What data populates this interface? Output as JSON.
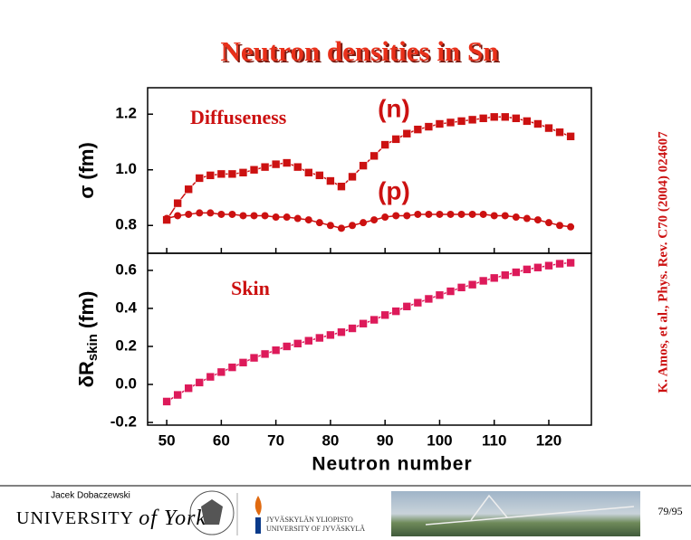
{
  "chart_data": [
    {
      "type": "line",
      "title": "Neutron densities in Sn",
      "y_label": [
        "σ",
        "(fm)"
      ],
      "annotations": [
        "Diffuseness",
        "(n)",
        "(p)"
      ],
      "x": [
        50,
        52,
        54,
        56,
        58,
        60,
        62,
        64,
        66,
        68,
        70,
        72,
        74,
        76,
        78,
        80,
        82,
        84,
        86,
        88,
        90,
        92,
        94,
        96,
        98,
        100,
        102,
        104,
        106,
        108,
        110,
        112,
        114,
        116,
        118,
        120,
        122,
        124
      ],
      "xlim": [
        46.5,
        127.8
      ],
      "xticks": [
        50,
        60,
        70,
        80,
        90,
        100,
        110,
        120
      ],
      "ylim": [
        0.7,
        1.295
      ],
      "yticks": [
        0.8,
        {
          "value": 1.0,
          "label": "1.0"
        },
        1.2
      ],
      "series": [
        {
          "color": "#cc1111",
          "marker": "square",
          "values": [
            0.82,
            0.88,
            0.93,
            0.97,
            0.98,
            0.985,
            0.985,
            0.99,
            1.0,
            1.01,
            1.02,
            1.025,
            1.01,
            0.99,
            0.98,
            0.96,
            0.94,
            0.975,
            1.015,
            1.05,
            1.09,
            1.11,
            1.13,
            1.145,
            1.155,
            1.165,
            1.17,
            1.175,
            1.18,
            1.185,
            1.19,
            1.19,
            1.185,
            1.175,
            1.165,
            1.15,
            1.135,
            1.12
          ]
        },
        {
          "color": "#cc1111",
          "marker": "circle",
          "values": [
            0.825,
            0.835,
            0.84,
            0.845,
            0.845,
            0.84,
            0.84,
            0.835,
            0.835,
            0.835,
            0.83,
            0.83,
            0.825,
            0.82,
            0.81,
            0.8,
            0.79,
            0.8,
            0.81,
            0.82,
            0.83,
            0.835,
            0.835,
            0.84,
            0.84,
            0.84,
            0.84,
            0.84,
            0.84,
            0.84,
            0.835,
            0.835,
            0.83,
            0.825,
            0.82,
            0.81,
            0.8,
            0.795
          ]
        }
      ]
    },
    {
      "type": "line",
      "y_label": [
        "δR",
        "skin",
        "(fm)"
      ],
      "x_label": "Neutron number",
      "annotations": [
        "Skin"
      ],
      "x": [
        50,
        52,
        54,
        56,
        58,
        60,
        62,
        64,
        66,
        68,
        70,
        72,
        74,
        76,
        78,
        80,
        82,
        84,
        86,
        88,
        90,
        92,
        94,
        96,
        98,
        100,
        102,
        104,
        106,
        108,
        110,
        112,
        114,
        116,
        118,
        120,
        122,
        124
      ],
      "xlim": [
        46.5,
        127.8
      ],
      "xticks": [
        50,
        60,
        70,
        80,
        90,
        100,
        110,
        120
      ],
      "ylim": [
        -0.214,
        0.69
      ],
      "yticks": [
        -0.2,
        {
          "value": 0.0,
          "label": "0.0"
        },
        0.2,
        0.4,
        0.6
      ],
      "series": [
        {
          "color": "#dd1a5a",
          "marker": "square",
          "values": [
            -0.09,
            -0.055,
            -0.02,
            0.01,
            0.04,
            0.065,
            0.09,
            0.115,
            0.14,
            0.16,
            0.18,
            0.2,
            0.215,
            0.23,
            0.245,
            0.26,
            0.275,
            0.295,
            0.32,
            0.34,
            0.365,
            0.385,
            0.41,
            0.43,
            0.45,
            0.47,
            0.49,
            0.51,
            0.525,
            0.545,
            0.56,
            0.575,
            0.59,
            0.605,
            0.615,
            0.625,
            0.635,
            0.64
          ]
        }
      ]
    }
  ],
  "reference": "K. Amos, et al., Phys. Rev. C70 (2004) 024607",
  "footer": {
    "author": "Jacek Dobaczewski",
    "york": [
      "UNIVERSITY",
      "of York"
    ],
    "jyvaskyla": [
      "JYVÄSKYLÄN YLIOPISTO",
      "UNIVERSITY OF JYVÄSKYLÄ"
    ],
    "page": "79/95"
  }
}
